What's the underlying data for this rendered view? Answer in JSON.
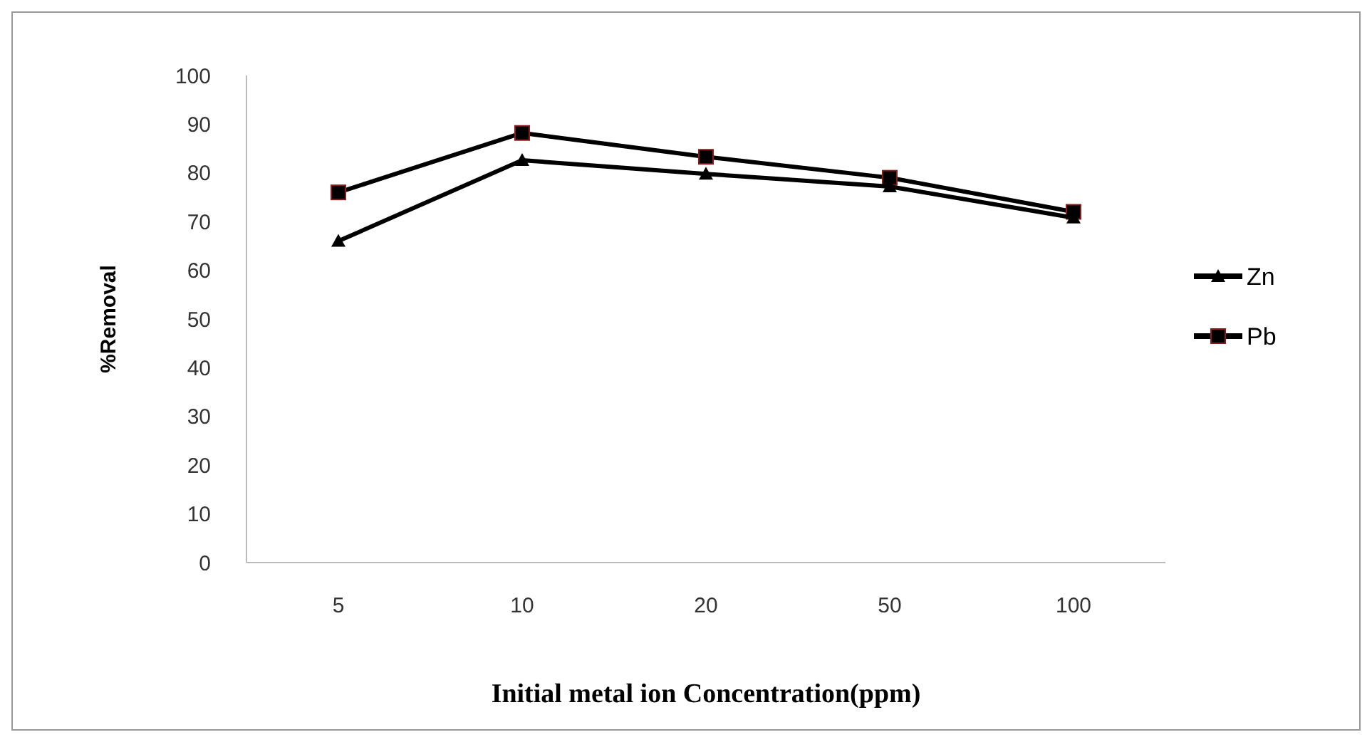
{
  "chart_data": {
    "type": "line",
    "xlabel": "Initial metal ion Concentration(ppm)",
    "ylabel": "%Removal",
    "categories": [
      "5",
      "10",
      "20",
      "50",
      "100"
    ],
    "ylim": [
      0,
      100
    ],
    "yticks": [
      0,
      10,
      20,
      30,
      40,
      50,
      60,
      70,
      80,
      90,
      100
    ],
    "grid": false,
    "legend": "right",
    "line_style": "solid",
    "series": [
      {
        "name": "Zn",
        "color": "#000000",
        "marker": "triangle",
        "values": [
          66,
          82.6,
          79.8,
          77.2,
          70.8
        ]
      },
      {
        "name": "Pb",
        "color": "#000000",
        "marker": "square",
        "values": [
          76,
          88.2,
          83.3,
          79,
          72
        ]
      }
    ]
  }
}
